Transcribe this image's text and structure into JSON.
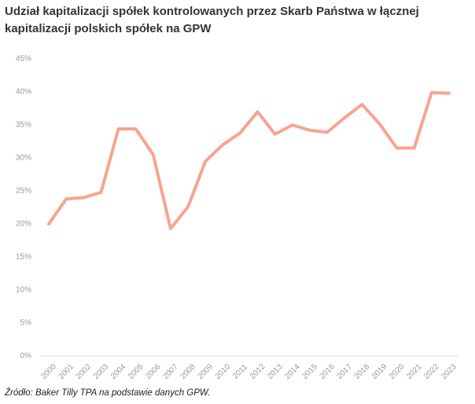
{
  "chart_data": {
    "type": "line",
    "title": "Udział kapitalizacji spółek kontrolowanych przez Skarb Państwa w łącznej kapitalizacji polskich spółek na GPW",
    "source": "Źródło: Baker Tilly TPA na podstawie danych GPW.",
    "categories": [
      "2000",
      "2001",
      "2002",
      "2003",
      "2004",
      "2005",
      "2006",
      "2007",
      "2008",
      "2009",
      "2010",
      "2011",
      "2012",
      "2013",
      "2014",
      "2015",
      "2016",
      "2017",
      "2018",
      "2019",
      "2020",
      "2021",
      "2022",
      "2023"
    ],
    "values": [
      20.0,
      23.8,
      24.0,
      24.8,
      34.4,
      34.4,
      30.5,
      19.3,
      22.6,
      29.5,
      32.0,
      33.8,
      37.0,
      33.6,
      35.0,
      34.2,
      33.9,
      36.1,
      38.1,
      35.2,
      31.5,
      31.5,
      39.9,
      39.8
    ],
    "color": "#f7a491",
    "ylim": [
      0,
      45
    ],
    "yticks": [
      {
        "value": 0,
        "label": "0%"
      },
      {
        "value": 5,
        "label": "5%"
      },
      {
        "value": 10,
        "label": "10%"
      },
      {
        "value": 15,
        "label": "15%"
      },
      {
        "value": 20,
        "label": "20%"
      },
      {
        "value": 25,
        "label": "25%"
      },
      {
        "value": 30,
        "label": "30%"
      },
      {
        "value": 35,
        "label": "35%"
      },
      {
        "value": 40,
        "label": "40%"
      },
      {
        "value": 45,
        "label": "45%"
      }
    ],
    "grid": false
  }
}
